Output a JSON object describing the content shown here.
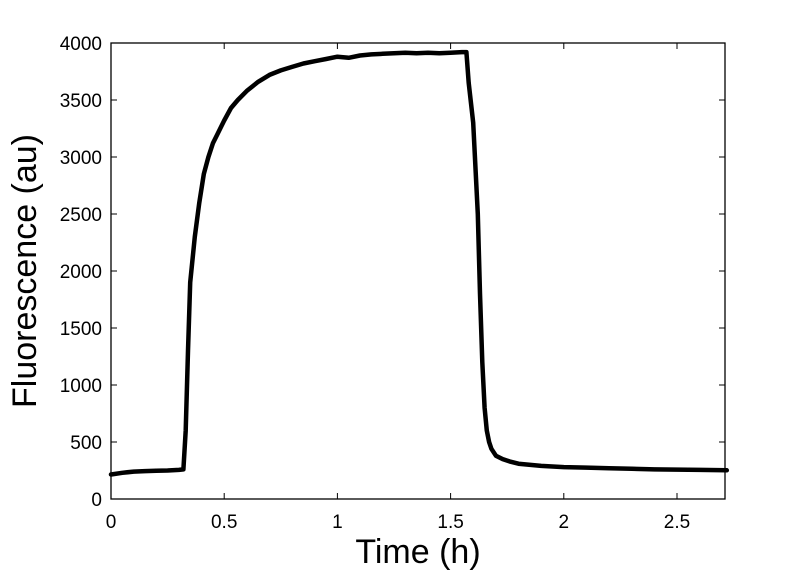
{
  "chart_data": {
    "type": "line",
    "title": "",
    "xlabel": "Time (h)",
    "ylabel": "Fluorescence (au)",
    "xlim": [
      0,
      2.72
    ],
    "ylim": [
      0,
      4000
    ],
    "grid": false,
    "legend": null,
    "xticks": [
      "0",
      "0.5",
      "1",
      "1.5",
      "2",
      "2.5"
    ],
    "yticks": [
      "0",
      "500",
      "1000",
      "1500",
      "2000",
      "2500",
      "3000",
      "3500",
      "4000"
    ],
    "series": [
      {
        "name": "Fluorescence",
        "color": "#000000",
        "x": [
          0,
          0.05,
          0.1,
          0.15,
          0.2,
          0.25,
          0.3,
          0.32,
          0.33,
          0.34,
          0.35,
          0.37,
          0.39,
          0.41,
          0.43,
          0.45,
          0.47,
          0.5,
          0.53,
          0.56,
          0.6,
          0.65,
          0.7,
          0.75,
          0.8,
          0.85,
          0.9,
          0.95,
          1.0,
          1.05,
          1.1,
          1.15,
          1.2,
          1.25,
          1.3,
          1.35,
          1.4,
          1.45,
          1.5,
          1.55,
          1.57,
          1.58,
          1.6,
          1.62,
          1.63,
          1.64,
          1.65,
          1.66,
          1.67,
          1.68,
          1.7,
          1.73,
          1.76,
          1.8,
          1.9,
          2.0,
          2.1,
          2.2,
          2.3,
          2.4,
          2.5,
          2.6,
          2.72
        ],
        "y": [
          215,
          230,
          240,
          245,
          248,
          250,
          255,
          260,
          600,
          1300,
          1900,
          2300,
          2600,
          2850,
          3000,
          3120,
          3200,
          3320,
          3430,
          3500,
          3580,
          3660,
          3720,
          3760,
          3790,
          3820,
          3840,
          3860,
          3880,
          3870,
          3890,
          3900,
          3905,
          3910,
          3915,
          3910,
          3915,
          3910,
          3915,
          3920,
          3920,
          3650,
          3300,
          2500,
          1800,
          1200,
          800,
          600,
          500,
          440,
          380,
          350,
          330,
          310,
          290,
          280,
          275,
          270,
          265,
          260,
          258,
          255,
          252
        ]
      }
    ]
  }
}
